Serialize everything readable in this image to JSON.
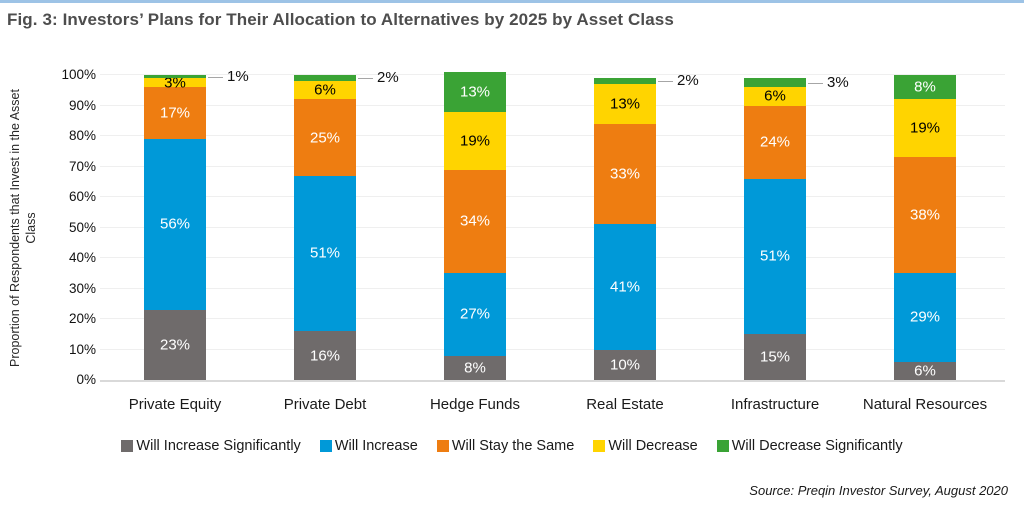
{
  "figure": {
    "title": "Fig. 3: Investors’ Plans for Their Allocation to Alternatives by 2025 by Asset Class",
    "source": "Source: Preqin Investor Survey, August 2020",
    "accent_color": "#9dc3e6"
  },
  "chart_data": {
    "type": "bar",
    "stacked": true,
    "title": "Fig. 3: Investors’ Plans for Their Allocation to Alternatives by 2025 by Asset Class",
    "xlabel": "",
    "ylabel": "Proportion of Respondents that Invest in the Asset Class",
    "ylim": [
      0,
      100
    ],
    "yticks": [
      "0%",
      "10%",
      "20%",
      "30%",
      "40%",
      "50%",
      "60%",
      "70%",
      "80%",
      "90%",
      "100%"
    ],
    "grid": true,
    "legend_position": "bottom",
    "unit": "%",
    "categories": [
      "Private Equity",
      "Private Debt",
      "Hedge Funds",
      "Real Estate",
      "Infrastructure",
      "Natural Resources"
    ],
    "series": [
      {
        "name": "Will Increase Significantly",
        "color": "#6f6b6b",
        "label_color": "#ffffff",
        "values": [
          23,
          16,
          8,
          10,
          15,
          6
        ]
      },
      {
        "name": "Will Increase",
        "color": "#0099d8",
        "label_color": "#ffffff",
        "values": [
          56,
          51,
          27,
          41,
          51,
          29
        ]
      },
      {
        "name": "Will Stay the Same",
        "color": "#ee7d11",
        "label_color": "#ffffff",
        "values": [
          17,
          25,
          34,
          33,
          24,
          38
        ]
      },
      {
        "name": "Will Decrease",
        "color": "#ffd400",
        "label_color": "#000000",
        "values": [
          3,
          6,
          19,
          13,
          6,
          19
        ]
      },
      {
        "name": "Will Decrease Significantly",
        "color": "#3aa335",
        "label_color": "#ffffff",
        "values": [
          1,
          2,
          13,
          2,
          3,
          8
        ]
      }
    ],
    "callout_threshold": 3
  }
}
